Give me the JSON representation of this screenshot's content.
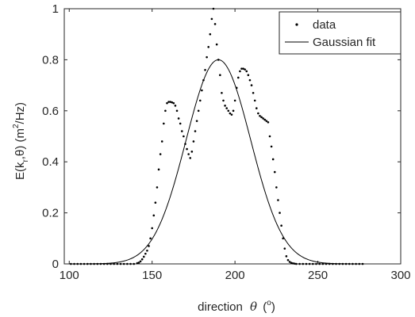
{
  "chart_data": {
    "type": "scatter",
    "xlabel": "direction",
    "xlabel_symbol": "θ",
    "xlabel_unit_open": "(",
    "xlabel_unit_sup": "o",
    "xlabel_unit_close": ")",
    "ylabel_prefix": "E(k",
    "ylabel_sub": "r",
    "ylabel_mid": ",θ) (m",
    "ylabel_sup": "2",
    "ylabel_suffix": "/Hz)",
    "xlim": [
      97,
      300
    ],
    "ylim": [
      0,
      1
    ],
    "x_ticks": [
      100,
      150,
      200,
      250,
      300
    ],
    "y_ticks": [
      0,
      0.2,
      0.4,
      0.6,
      0.8,
      1
    ],
    "x_tick_labels": [
      "100",
      "150",
      "200",
      "250",
      "300"
    ],
    "y_tick_labels": [
      "0",
      "0.2",
      "0.4",
      "0.6",
      "0.8",
      "1"
    ],
    "grid": false,
    "box": true,
    "legend_position": "top-right",
    "series": [
      {
        "name": "data",
        "style": "dots",
        "color": "#000000",
        "points": [
          [
            101,
            0
          ],
          [
            103,
            0
          ],
          [
            105,
            0
          ],
          [
            107,
            0
          ],
          [
            109,
            0
          ],
          [
            111,
            0
          ],
          [
            113,
            0
          ],
          [
            115,
            0
          ],
          [
            117,
            0
          ],
          [
            119,
            0
          ],
          [
            121,
            0
          ],
          [
            123,
            0
          ],
          [
            125,
            0
          ],
          [
            127,
            0
          ],
          [
            129,
            0
          ],
          [
            131,
            0
          ],
          [
            133,
            0
          ],
          [
            135,
            0
          ],
          [
            137,
            0
          ],
          [
            139,
            0
          ],
          [
            141,
            0.003
          ],
          [
            142,
            0.005
          ],
          [
            143,
            0.01
          ],
          [
            144,
            0.018
          ],
          [
            145,
            0.028
          ],
          [
            146,
            0.04
          ],
          [
            147,
            0.052
          ],
          [
            148,
            0.07
          ],
          [
            149,
            0.1
          ],
          [
            150,
            0.14
          ],
          [
            151,
            0.19
          ],
          [
            152,
            0.24
          ],
          [
            153,
            0.3
          ],
          [
            154,
            0.37
          ],
          [
            155,
            0.43
          ],
          [
            156,
            0.48
          ],
          [
            157,
            0.55
          ],
          [
            158,
            0.6
          ],
          [
            159,
            0.63
          ],
          [
            160,
            0.635
          ],
          [
            161,
            0.635
          ],
          [
            162,
            0.633
          ],
          [
            163,
            0.63
          ],
          [
            164,
            0.62
          ],
          [
            165,
            0.6
          ],
          [
            166,
            0.57
          ],
          [
            167,
            0.55
          ],
          [
            168,
            0.52
          ],
          [
            169,
            0.5
          ],
          [
            170,
            0.47
          ],
          [
            171,
            0.45
          ],
          [
            172,
            0.43
          ],
          [
            173,
            0.415
          ],
          [
            174,
            0.44
          ],
          [
            175,
            0.48
          ],
          [
            176,
            0.52
          ],
          [
            177,
            0.56
          ],
          [
            178,
            0.6
          ],
          [
            179,
            0.64
          ],
          [
            180,
            0.68
          ],
          [
            181,
            0.72
          ],
          [
            182,
            0.76
          ],
          [
            183,
            0.81
          ],
          [
            184,
            0.85
          ],
          [
            185,
            0.9
          ],
          [
            186,
            0.96
          ],
          [
            187,
            1.0
          ],
          [
            188,
            0.94
          ],
          [
            189,
            0.86
          ],
          [
            190,
            0.8
          ],
          [
            191,
            0.74
          ],
          [
            192,
            0.67
          ],
          [
            193,
            0.64
          ],
          [
            194,
            0.62
          ],
          [
            195,
            0.61
          ],
          [
            196,
            0.6
          ],
          [
            197,
            0.59
          ],
          [
            198,
            0.585
          ],
          [
            199,
            0.6
          ],
          [
            200,
            0.64
          ],
          [
            201,
            0.69
          ],
          [
            202,
            0.73
          ],
          [
            203,
            0.755
          ],
          [
            204,
            0.765
          ],
          [
            205,
            0.765
          ],
          [
            206,
            0.762
          ],
          [
            207,
            0.755
          ],
          [
            208,
            0.74
          ],
          [
            209,
            0.72
          ],
          [
            210,
            0.7
          ],
          [
            211,
            0.67
          ],
          [
            212,
            0.64
          ],
          [
            213,
            0.61
          ],
          [
            214,
            0.59
          ],
          [
            215,
            0.58
          ],
          [
            216,
            0.575
          ],
          [
            217,
            0.57
          ],
          [
            218,
            0.565
          ],
          [
            219,
            0.56
          ],
          [
            220,
            0.555
          ],
          [
            221,
            0.5
          ],
          [
            222,
            0.46
          ],
          [
            223,
            0.41
          ],
          [
            224,
            0.36
          ],
          [
            225,
            0.3
          ],
          [
            226,
            0.25
          ],
          [
            227,
            0.2
          ],
          [
            228,
            0.15
          ],
          [
            229,
            0.1
          ],
          [
            230,
            0.06
          ],
          [
            231,
            0.03
          ],
          [
            232,
            0.015
          ],
          [
            233,
            0.008
          ],
          [
            234,
            0.004
          ],
          [
            235,
            0.002
          ],
          [
            236,
            0.001
          ],
          [
            237,
            0
          ],
          [
            239,
            0
          ],
          [
            241,
            0
          ],
          [
            243,
            0
          ],
          [
            245,
            0
          ],
          [
            247,
            0
          ],
          [
            249,
            0
          ],
          [
            251,
            0
          ],
          [
            253,
            0
          ],
          [
            255,
            0
          ],
          [
            257,
            0
          ],
          [
            259,
            0
          ],
          [
            261,
            0
          ],
          [
            263,
            0
          ],
          [
            265,
            0
          ],
          [
            267,
            0
          ],
          [
            269,
            0
          ],
          [
            271,
            0
          ],
          [
            273,
            0
          ],
          [
            275,
            0
          ],
          [
            277,
            0
          ]
        ]
      },
      {
        "name": "Gaussian fit",
        "style": "line",
        "color": "#000000",
        "mean": 190,
        "amplitude": 0.8,
        "sigma": 19.5,
        "x_range": [
          100,
          278
        ]
      }
    ]
  }
}
